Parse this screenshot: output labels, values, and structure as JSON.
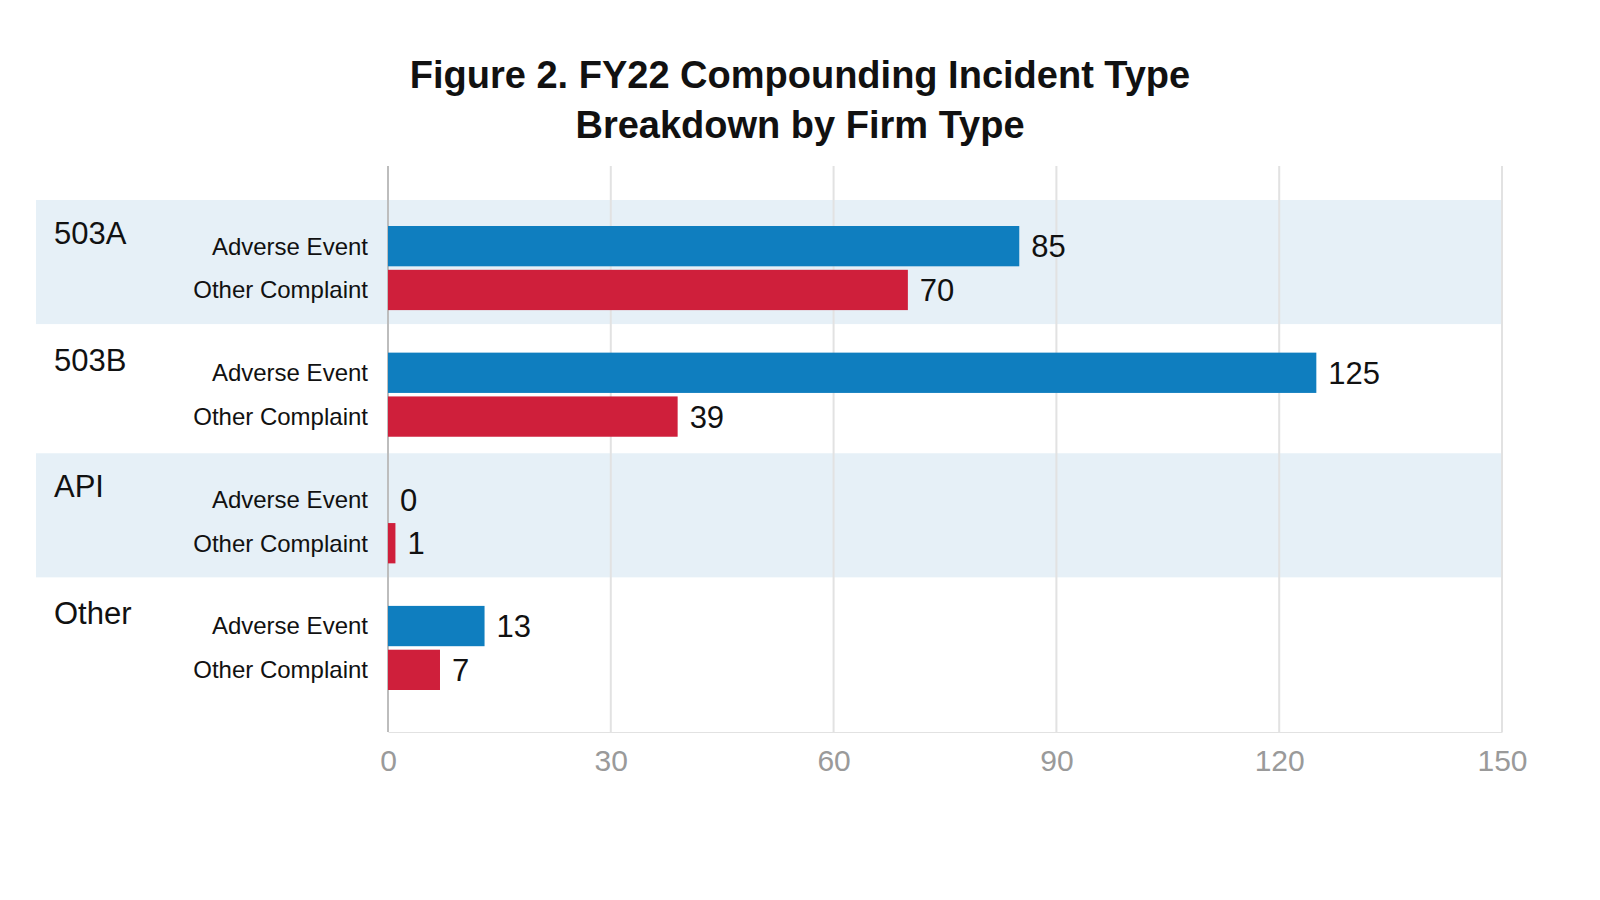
{
  "chart_data": {
    "type": "bar",
    "orientation": "horizontal",
    "title": "Figure 2. FY22 Compounding Incident Type\nBreakdown by Firm Type",
    "categories": [
      "503A",
      "503B",
      "API",
      "Other"
    ],
    "series": [
      {
        "name": "Adverse Event",
        "color": "#0f7ebf",
        "values": [
          85,
          125,
          0,
          13
        ]
      },
      {
        "name": "Other Complaint",
        "color": "#cf1f3b",
        "values": [
          70,
          39,
          1,
          7
        ]
      }
    ],
    "xlim": [
      0,
      150
    ],
    "xticks": [
      0,
      30,
      60,
      90,
      120,
      150
    ],
    "grid": true,
    "data_labels": true
  }
}
